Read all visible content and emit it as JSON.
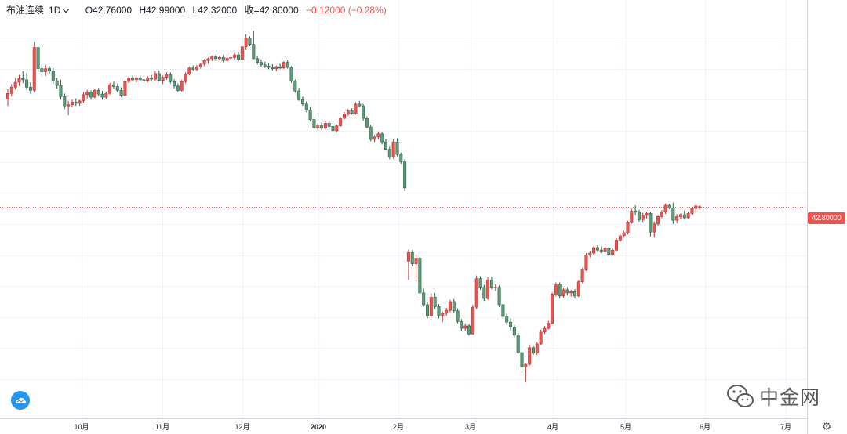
{
  "header": {
    "symbol": "布油连续",
    "timeframe": "1D",
    "open": "O42.76000",
    "high": "H42.99000",
    "low": "L42.32000",
    "close": "收=42.80000",
    "change": "−0.12000 (−0.28%)"
  },
  "price_tag": "42.80000",
  "watermark": "中金网",
  "icons": {
    "settings": "gear-icon",
    "logo": "cloud-logo-icon",
    "watermark": "wechat-icon"
  },
  "colors": {
    "up": "#ef5350",
    "down": "#26a69a",
    "up_fill": "#ef5350",
    "down_fill": "#5c9e7a",
    "last_line": "#ef5350"
  },
  "chart_data": {
    "type": "candlestick",
    "xlabels": [
      "10月",
      "11月",
      "12月",
      "2020",
      "2月",
      "3月",
      "4月",
      "5月",
      "6月",
      "7月"
    ],
    "ylim": [
      13,
      71
    ],
    "last_price": 42.8,
    "grid": true,
    "candles": [
      [
        60.1,
        61.7,
        59.0,
        61.0
      ],
      [
        61.0,
        62.5,
        60.5,
        62.0
      ],
      [
        62.0,
        63.5,
        61.6,
        62.8
      ],
      [
        62.8,
        64.0,
        62.2,
        63.4
      ],
      [
        63.4,
        64.6,
        62.7,
        63.2
      ],
      [
        63.2,
        64.3,
        61.5,
        62.0
      ],
      [
        62.0,
        62.8,
        61.0,
        61.5
      ],
      [
        61.5,
        69.3,
        61.2,
        68.4
      ],
      [
        68.4,
        68.8,
        64.5,
        65.0
      ],
      [
        65.0,
        65.8,
        63.9,
        64.5
      ],
      [
        64.5,
        65.6,
        63.8,
        65.0
      ],
      [
        65.0,
        65.4,
        64.2,
        64.6
      ],
      [
        64.6,
        65.1,
        62.5,
        63.0
      ],
      [
        63.0,
        63.5,
        61.8,
        62.3
      ],
      [
        62.3,
        63.2,
        60.0,
        60.5
      ],
      [
        60.5,
        61.0,
        58.5,
        59.0
      ],
      [
        59.0,
        59.8,
        57.5,
        59.2
      ],
      [
        59.2,
        60.0,
        58.8,
        59.6
      ],
      [
        59.6,
        60.2,
        59.0,
        59.4
      ],
      [
        59.4,
        60.0,
        59.0,
        59.8
      ],
      [
        59.8,
        61.2,
        59.5,
        60.8
      ],
      [
        60.8,
        61.6,
        60.2,
        61.2
      ],
      [
        61.2,
        61.5,
        60.0,
        60.4
      ],
      [
        60.4,
        61.8,
        60.2,
        61.5
      ],
      [
        61.5,
        61.9,
        60.6,
        60.9
      ],
      [
        60.9,
        61.4,
        60.0,
        60.4
      ],
      [
        60.4,
        61.3,
        60.1,
        61.0
      ],
      [
        61.0,
        62.7,
        60.8,
        62.4
      ],
      [
        62.4,
        62.9,
        61.8,
        62.1
      ],
      [
        62.1,
        62.6,
        61.2,
        61.5
      ],
      [
        61.5,
        62.0,
        60.4,
        60.7
      ],
      [
        60.7,
        63.2,
        60.5,
        62.9
      ],
      [
        62.9,
        63.8,
        62.6,
        63.5
      ],
      [
        63.5,
        63.9,
        62.9,
        63.2
      ],
      [
        63.2,
        63.7,
        62.8,
        63.5
      ],
      [
        63.5,
        63.9,
        62.9,
        63.2
      ],
      [
        63.2,
        63.6,
        62.6,
        63.1
      ],
      [
        63.1,
        63.8,
        62.8,
        63.5
      ],
      [
        63.5,
        64.0,
        62.9,
        63.3
      ],
      [
        63.3,
        64.6,
        63.0,
        64.2
      ],
      [
        64.2,
        64.7,
        62.9,
        63.1
      ],
      [
        63.1,
        63.9,
        62.5,
        63.6
      ],
      [
        63.6,
        64.4,
        63.2,
        64.0
      ],
      [
        64.0,
        64.4,
        62.6,
        62.9
      ],
      [
        62.9,
        63.3,
        61.8,
        62.2
      ],
      [
        62.2,
        62.6,
        61.2,
        61.5
      ],
      [
        61.5,
        63.2,
        61.3,
        62.9
      ],
      [
        62.9,
        64.4,
        62.6,
        64.1
      ],
      [
        64.1,
        65.3,
        63.9,
        65.1
      ],
      [
        65.1,
        65.5,
        64.6,
        64.9
      ],
      [
        64.9,
        65.6,
        64.6,
        65.3
      ],
      [
        65.3,
        65.9,
        65.0,
        65.7
      ],
      [
        65.7,
        66.5,
        65.4,
        66.3
      ],
      [
        66.3,
        66.8,
        65.8,
        66.6
      ],
      [
        66.6,
        67.1,
        66.2,
        66.9
      ],
      [
        66.9,
        67.3,
        66.2,
        66.6
      ],
      [
        66.6,
        67.1,
        66.3,
        66.8
      ],
      [
        66.8,
        67.2,
        66.0,
        66.3
      ],
      [
        66.3,
        66.9,
        66.0,
        66.7
      ],
      [
        66.7,
        67.1,
        66.4,
        66.8
      ],
      [
        66.8,
        67.5,
        66.5,
        67.2
      ],
      [
        67.2,
        67.6,
        66.2,
        66.5
      ],
      [
        66.5,
        68.6,
        66.4,
        68.5
      ],
      [
        68.5,
        70.5,
        68.0,
        69.9
      ],
      [
        69.9,
        70.2,
        68.6,
        68.9
      ],
      [
        68.9,
        71.1,
        66.5,
        66.6
      ],
      [
        66.6,
        67.0,
        65.7,
        66.0
      ],
      [
        66.0,
        66.5,
        65.3,
        65.6
      ],
      [
        65.6,
        66.1,
        65.1,
        65.4
      ],
      [
        65.4,
        65.9,
        64.9,
        65.2
      ],
      [
        65.2,
        65.7,
        64.7,
        65.0
      ],
      [
        65.0,
        65.5,
        64.6,
        65.3
      ],
      [
        65.3,
        65.8,
        64.9,
        65.1
      ],
      [
        65.1,
        66.2,
        64.9,
        66.0
      ],
      [
        66.0,
        66.4,
        65.0,
        65.2
      ],
      [
        65.2,
        65.4,
        62.7,
        63.0
      ],
      [
        63.0,
        63.3,
        61.1,
        61.4
      ],
      [
        61.4,
        61.9,
        59.8,
        60.0
      ],
      [
        60.0,
        60.5,
        59.0,
        59.3
      ],
      [
        59.3,
        59.7,
        58.0,
        58.3
      ],
      [
        58.3,
        58.8,
        56.5,
        56.8
      ],
      [
        56.8,
        57.3,
        55.2,
        55.5
      ],
      [
        55.5,
        56.2,
        55.0,
        55.8
      ],
      [
        55.8,
        56.3,
        55.1,
        55.4
      ],
      [
        55.4,
        56.5,
        55.2,
        56.2
      ],
      [
        56.2,
        56.6,
        55.3,
        55.7
      ],
      [
        55.7,
        56.1,
        54.6,
        55.0
      ],
      [
        55.0,
        56.0,
        54.8,
        55.8
      ],
      [
        55.8,
        57.2,
        55.6,
        57.0
      ],
      [
        57.0,
        58.0,
        56.8,
        57.7
      ],
      [
        57.7,
        58.5,
        57.4,
        58.2
      ],
      [
        58.2,
        58.6,
        57.6,
        57.8
      ],
      [
        57.8,
        59.6,
        57.6,
        59.3
      ],
      [
        59.3,
        59.8,
        58.8,
        59.0
      ],
      [
        59.0,
        59.3,
        56.6,
        57.0
      ],
      [
        57.0,
        57.3,
        55.4,
        55.6
      ],
      [
        55.6,
        56.0,
        53.3,
        53.6
      ],
      [
        53.6,
        54.3,
        53.2,
        54.0
      ],
      [
        54.0,
        54.9,
        53.6,
        54.5
      ],
      [
        54.5,
        54.8,
        52.8,
        53.2
      ],
      [
        53.2,
        53.6,
        51.8,
        52.0
      ],
      [
        52.0,
        52.4,
        50.4,
        50.8
      ],
      [
        50.8,
        53.6,
        50.5,
        53.2
      ],
      [
        53.2,
        53.8,
        50.9,
        51.2
      ],
      [
        51.2,
        51.5,
        49.7,
        50.0
      ],
      [
        50.0,
        50.4,
        45.3,
        45.8
      ],
      [
        34.0,
        35.9,
        31.0,
        35.4
      ],
      [
        35.4,
        35.8,
        33.2,
        33.6
      ],
      [
        33.6,
        35.1,
        30.8,
        34.5
      ],
      [
        34.5,
        34.7,
        28.5,
        28.9
      ],
      [
        28.9,
        29.6,
        26.7,
        27.0
      ],
      [
        27.0,
        27.5,
        24.8,
        25.2
      ],
      [
        25.2,
        28.8,
        25.0,
        28.2
      ],
      [
        28.2,
        28.9,
        26.3,
        26.7
      ],
      [
        26.7,
        27.1,
        24.8,
        25.3
      ],
      [
        25.3,
        25.9,
        24.2,
        25.6
      ],
      [
        25.6,
        26.5,
        25.2,
        26.1
      ],
      [
        26.1,
        27.8,
        25.8,
        27.5
      ],
      [
        27.5,
        27.9,
        25.6,
        26.0
      ],
      [
        26.0,
        26.4,
        24.0,
        24.3
      ],
      [
        24.3,
        24.7,
        22.8,
        23.2
      ],
      [
        23.2,
        24.0,
        22.8,
        23.6
      ],
      [
        23.6,
        23.9,
        22.0,
        22.3
      ],
      [
        22.3,
        27.0,
        22.2,
        26.6
      ],
      [
        26.6,
        31.7,
        26.3,
        31.2
      ],
      [
        31.2,
        31.6,
        29.4,
        29.8
      ],
      [
        29.8,
        30.2,
        27.6,
        28.0
      ],
      [
        28.0,
        31.4,
        27.8,
        31.0
      ],
      [
        31.0,
        31.5,
        29.5,
        29.8
      ],
      [
        29.8,
        30.3,
        29.2,
        29.8
      ],
      [
        29.8,
        30.1,
        26.6,
        27.0
      ],
      [
        27.0,
        27.5,
        24.7,
        25.1
      ],
      [
        25.1,
        25.6,
        23.8,
        24.2
      ],
      [
        24.2,
        24.8,
        22.9,
        23.4
      ],
      [
        23.4,
        23.7,
        21.8,
        22.1
      ],
      [
        22.1,
        22.5,
        19.1,
        19.3
      ],
      [
        19.3,
        19.9,
        16.0,
        17.0
      ],
      [
        17.0,
        17.5,
        14.5,
        17.4
      ],
      [
        17.4,
        20.6,
        17.2,
        20.1
      ],
      [
        20.1,
        20.4,
        18.9,
        19.2
      ],
      [
        19.2,
        21.0,
        18.9,
        20.7
      ],
      [
        20.7,
        23.0,
        20.5,
        22.6
      ],
      [
        22.6,
        23.6,
        22.3,
        23.2
      ],
      [
        23.2,
        24.4,
        23.0,
        24.0
      ],
      [
        24.0,
        29.0,
        23.9,
        28.7
      ],
      [
        28.7,
        30.6,
        28.3,
        30.2
      ],
      [
        30.2,
        30.6,
        28.0,
        28.4
      ],
      [
        28.4,
        29.8,
        28.1,
        29.4
      ],
      [
        29.4,
        29.8,
        28.5,
        28.9
      ],
      [
        28.9,
        29.4,
        28.3,
        29.1
      ],
      [
        29.1,
        29.5,
        28.0,
        28.4
      ],
      [
        28.4,
        31.0,
        28.2,
        30.7
      ],
      [
        30.7,
        32.9,
        30.5,
        32.6
      ],
      [
        32.6,
        35.3,
        32.4,
        35.0
      ],
      [
        35.0,
        35.6,
        34.6,
        35.3
      ],
      [
        35.3,
        36.5,
        35.0,
        36.2
      ],
      [
        36.2,
        36.6,
        35.5,
        35.8
      ],
      [
        35.8,
        36.3,
        35.3,
        35.5
      ],
      [
        35.5,
        36.4,
        35.2,
        36.1
      ],
      [
        36.1,
        36.3,
        34.8,
        35.1
      ],
      [
        35.1,
        36.1,
        34.8,
        35.8
      ],
      [
        35.8,
        37.7,
        35.5,
        37.4
      ],
      [
        37.4,
        38.4,
        37.1,
        38.1
      ],
      [
        38.1,
        38.9,
        37.8,
        38.6
      ],
      [
        38.6,
        40.5,
        38.3,
        40.2
      ],
      [
        40.2,
        42.4,
        40.0,
        42.1
      ],
      [
        42.1,
        43.0,
        41.4,
        41.9
      ],
      [
        41.9,
        42.3,
        40.3,
        40.7
      ],
      [
        40.7,
        41.8,
        40.2,
        41.4
      ],
      [
        41.4,
        42.0,
        40.9,
        41.7
      ],
      [
        41.7,
        42.0,
        38.0,
        38.7
      ],
      [
        38.7,
        40.4,
        37.8,
        40.0
      ],
      [
        40.0,
        41.5,
        39.7,
        41.2
      ],
      [
        41.2,
        42.2,
        40.9,
        41.9
      ],
      [
        41.9,
        43.3,
        41.6,
        43.0
      ],
      [
        43.0,
        43.2,
        42.4,
        42.6
      ],
      [
        42.6,
        43.4,
        40.0,
        40.6
      ],
      [
        40.6,
        41.6,
        40.1,
        41.2
      ],
      [
        41.2,
        41.7,
        40.8,
        41.5
      ],
      [
        41.5,
        42.2,
        40.7,
        41.0
      ],
      [
        41.0,
        42.0,
        40.8,
        41.7
      ],
      [
        41.7,
        42.7,
        41.5,
        42.5
      ],
      [
        42.5,
        43.0,
        42.0,
        42.9
      ],
      [
        42.76,
        42.99,
        42.32,
        42.8
      ]
    ]
  }
}
